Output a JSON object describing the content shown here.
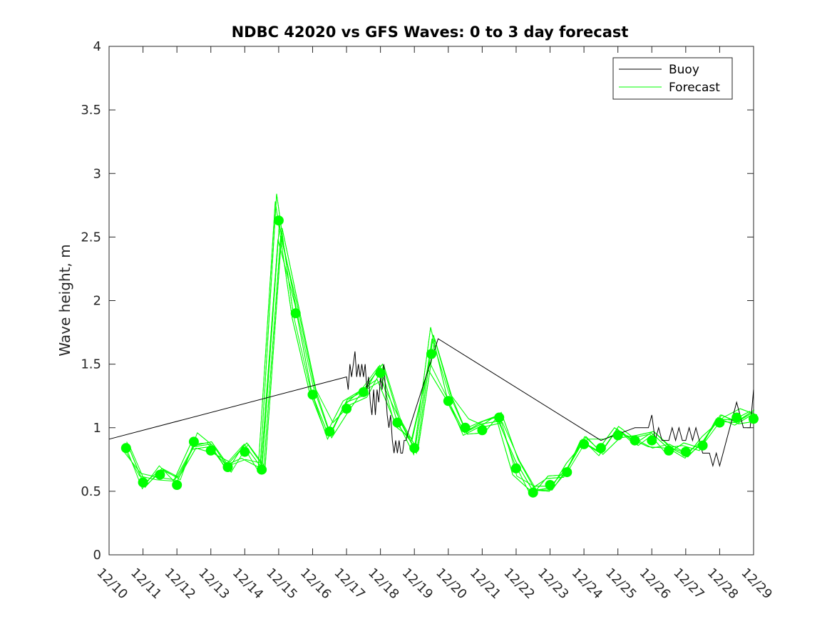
{
  "chart_data": {
    "type": "line",
    "title": "NDBC 42020 vs GFS Waves: 0 to 3 day forecast",
    "xlabel": "",
    "ylabel": "Wave height, m",
    "xlim": [
      0,
      19
    ],
    "ylim": [
      0,
      4
    ],
    "yticks": [
      0,
      0.5,
      1,
      1.5,
      2,
      2.5,
      3,
      3.5,
      4
    ],
    "yticklabels": [
      "0",
      "0.5",
      "1",
      "1.5",
      "2",
      "2.5",
      "3",
      "3.5",
      "4"
    ],
    "xticklabels": [
      "12/10",
      "12/11",
      "12/12",
      "12/13",
      "12/14",
      "12/15",
      "12/16",
      "12/17",
      "12/18",
      "12/19",
      "12/20",
      "12/21",
      "12/22",
      "12/23",
      "12/24",
      "12/25",
      "12/26",
      "12/27",
      "12/28",
      "12/29"
    ],
    "grid": false,
    "legend": {
      "placement": "top-right",
      "entries": [
        "Buoy",
        "Forecast"
      ]
    },
    "colors": {
      "buoy": "#000000",
      "forecast": "#00ff00"
    },
    "series": [
      {
        "name": "Buoy",
        "x": [
          0,
          7.0,
          7.05,
          7.1,
          7.15,
          7.2,
          7.25,
          7.3,
          7.35,
          7.4,
          7.45,
          7.5,
          7.55,
          7.6,
          7.65,
          7.7,
          7.75,
          7.8,
          7.85,
          7.9,
          7.95,
          8.0,
          8.05,
          8.1,
          8.15,
          8.2,
          8.25,
          8.3,
          8.35,
          8.4,
          8.45,
          8.5,
          8.55,
          8.6,
          8.65,
          8.7,
          8.75,
          8.8,
          9.7,
          14.5,
          15.0,
          15.5,
          15.9,
          16.0,
          16.1,
          16.2,
          16.3,
          16.5,
          16.6,
          16.7,
          16.8,
          16.9,
          17.0,
          17.1,
          17.2,
          17.3,
          17.4,
          17.5,
          17.6,
          17.7,
          17.8,
          17.9,
          18.0,
          18.1,
          18.2,
          18.3,
          18.4,
          18.5,
          18.6,
          18.7,
          18.8,
          18.9,
          19.0
        ],
        "y": [
          0.91,
          1.4,
          1.3,
          1.5,
          1.4,
          1.5,
          1.6,
          1.4,
          1.5,
          1.4,
          1.5,
          1.4,
          1.5,
          1.3,
          1.4,
          1.2,
          1.1,
          1.3,
          1.1,
          1.3,
          1.2,
          1.4,
          1.3,
          1.5,
          1.3,
          1.1,
          1.0,
          1.1,
          0.9,
          0.8,
          0.9,
          0.8,
          0.9,
          0.8,
          0.8,
          0.9,
          0.9,
          0.95,
          1.7,
          0.9,
          0.95,
          1.0,
          1.0,
          1.1,
          0.9,
          1.0,
          0.9,
          0.9,
          1.0,
          0.9,
          1.0,
          0.9,
          0.9,
          1.0,
          0.9,
          1.0,
          0.9,
          0.8,
          0.8,
          0.8,
          0.7,
          0.8,
          0.7,
          0.8,
          0.9,
          1.0,
          1.1,
          1.2,
          1.1,
          1.0,
          1.0,
          1.0,
          1.3
        ]
      },
      {
        "name": "Forecast",
        "x": [
          0.5,
          1.0,
          1.5,
          2.0,
          2.5,
          3.0,
          3.5,
          4.0,
          4.5,
          5.0,
          5.5,
          6.0,
          6.5,
          7.0,
          7.5,
          8.0,
          8.5,
          9.0,
          9.5,
          10.0,
          10.5,
          11.0,
          11.5,
          12.0,
          12.5,
          13.0,
          13.5,
          14.0,
          14.5,
          15.0,
          15.5,
          16.0,
          16.5,
          17.0,
          17.5,
          18.0,
          18.5,
          19.0
        ],
        "y": [
          0.84,
          0.57,
          0.63,
          0.55,
          0.89,
          0.82,
          0.69,
          0.81,
          0.67,
          2.63,
          1.9,
          1.26,
          0.97,
          1.15,
          1.28,
          1.43,
          1.04,
          0.84,
          1.58,
          1.21,
          1.0,
          0.98,
          1.08,
          0.68,
          0.49,
          0.55,
          0.65,
          0.87,
          0.84,
          0.94,
          0.9,
          0.9,
          0.82,
          0.81,
          0.86,
          1.04,
          1.08,
          1.07
        ]
      }
    ]
  }
}
